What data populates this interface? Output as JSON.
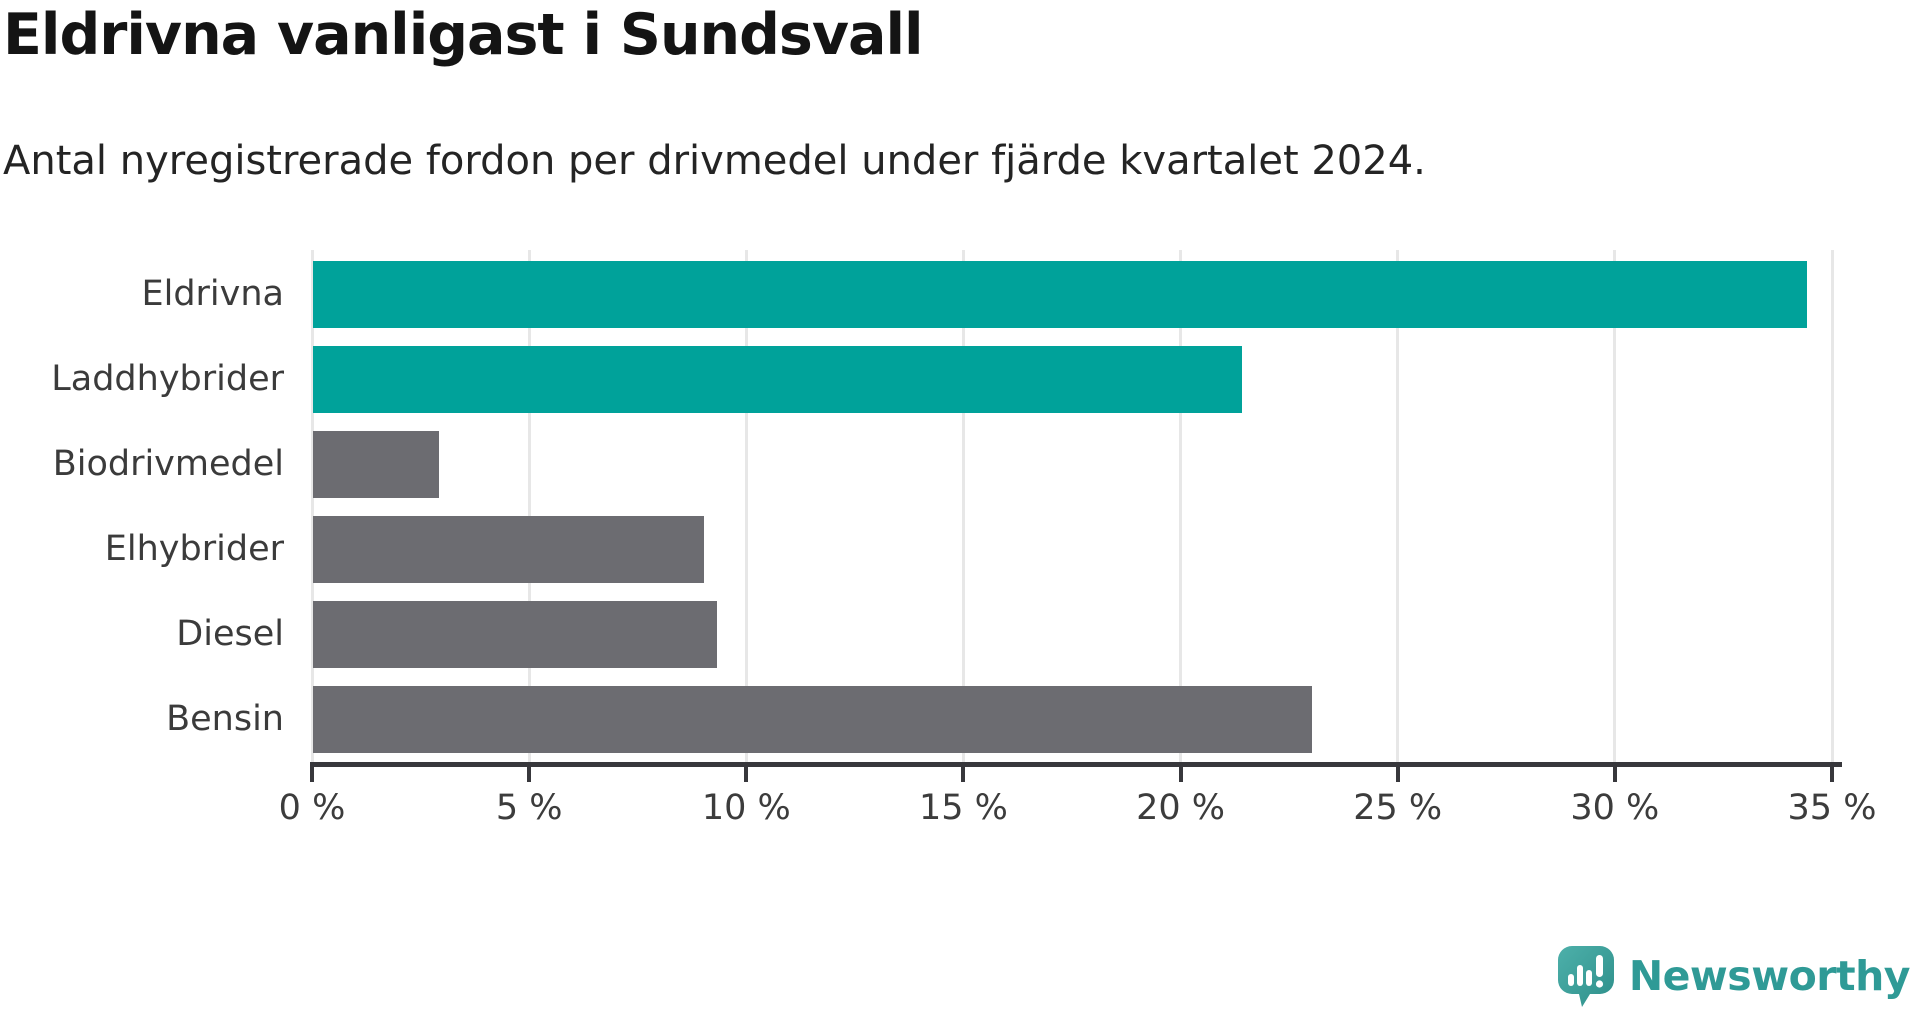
{
  "header": {
    "title": "Eldrivna vanligast i Sundsvall",
    "subtitle": "Antal nyregistrerade fordon per drivmedel under fjärde kvartalet 2024."
  },
  "chart_data": {
    "type": "bar",
    "orientation": "horizontal",
    "title": "Eldrivna vanligast i Sundsvall",
    "subtitle": "Antal nyregistrerade fordon per drivmedel under fjärde kvartalet 2024.",
    "categories": [
      "Eldrivna",
      "Laddhybrider",
      "Biodrivmedel",
      "Elhybrider",
      "Diesel",
      "Bensin"
    ],
    "values": [
      34.4,
      21.4,
      2.9,
      9.0,
      9.3,
      23.0
    ],
    "unit": "%",
    "bar_colors": [
      "#00a29a",
      "#00a29a",
      "#6c6c71",
      "#6c6c71",
      "#6c6c71",
      "#6c6c71"
    ],
    "highlight_color": "#00a29a",
    "default_color": "#6c6c71",
    "xlim": [
      0,
      35
    ],
    "x_tick_values": [
      0,
      5,
      10,
      15,
      20,
      25,
      30,
      35
    ],
    "x_tick_labels": [
      "0 %",
      "5 %",
      "10 %",
      "15 %",
      "20 %",
      "25 %",
      "30 %",
      "35 %"
    ],
    "grid": true,
    "grid_color": "#e7e7e7",
    "axis_color": "#38383c",
    "legend": "none"
  },
  "footer": {
    "brand": "Newsworthy",
    "logo_icon": "newsworthy-speech-bubble-chart-icon",
    "brand_color": "#2f9a96",
    "logo_fill_top": "#4db0aa",
    "logo_fill_bottom": "#2e8f8a"
  }
}
